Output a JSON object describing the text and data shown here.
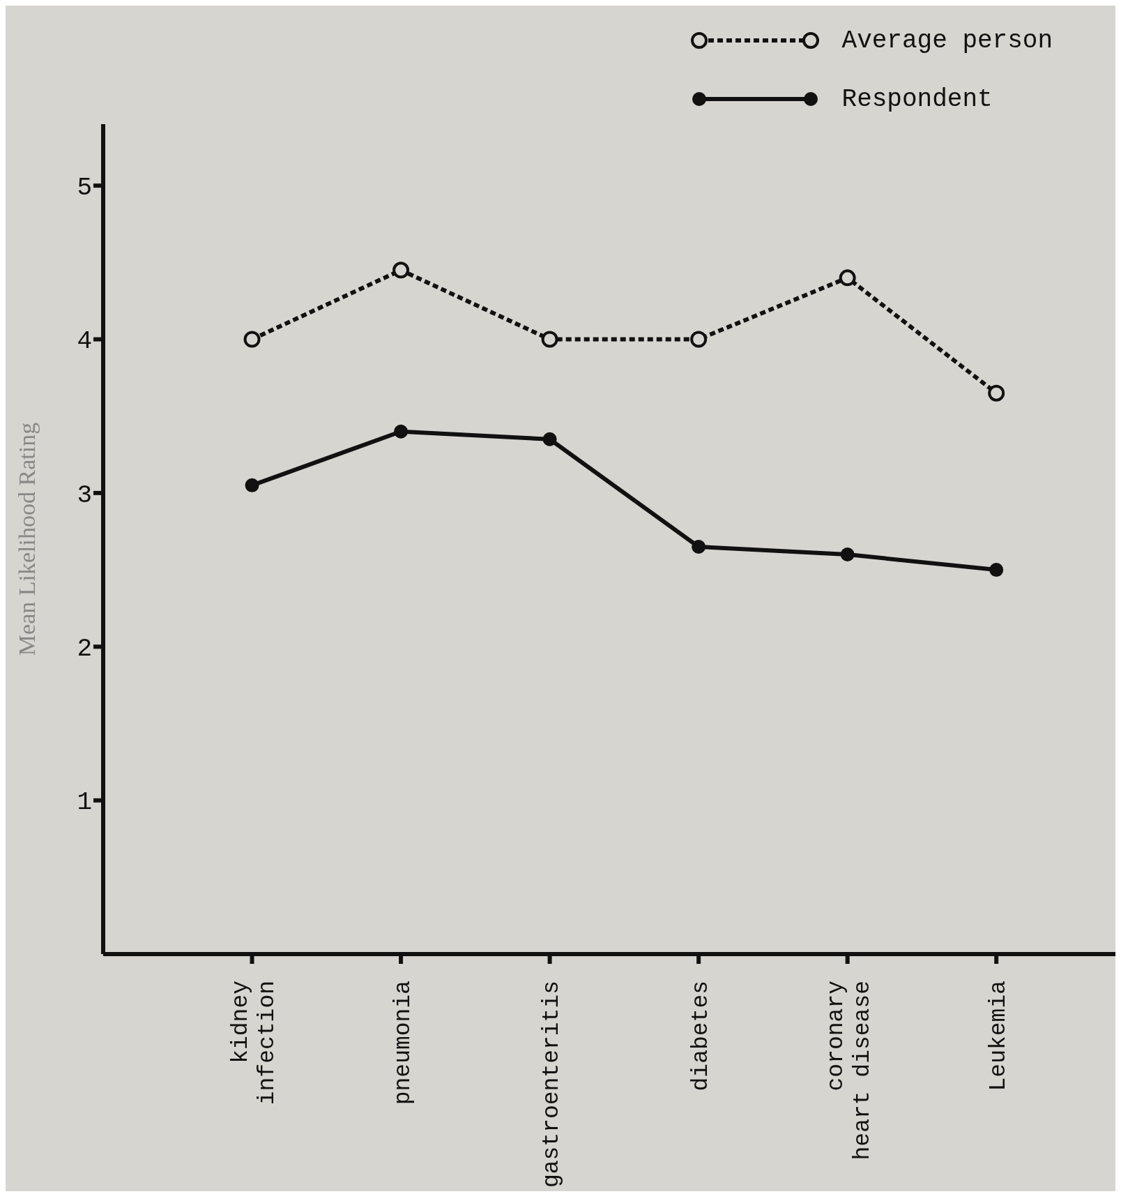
{
  "chart_data": {
    "type": "line",
    "ylabel": "Mean Likelihood Rating",
    "categories": [
      "kidney\ninfection",
      "pneumonia",
      "gastroenteritis",
      "diabetes",
      "coronary\nheart disease",
      "Leukemia"
    ],
    "series": [
      {
        "name": "Average person",
        "color": "#111111",
        "line_style": "dashed",
        "values": [
          4.0,
          4.45,
          4.0,
          4.0,
          4.4,
          3.65
        ]
      },
      {
        "name": "Respondent",
        "color": "#111111",
        "line_style": "solid",
        "values": [
          3.05,
          3.4,
          3.35,
          2.65,
          2.6,
          2.5
        ]
      }
    ],
    "ylim": [
      0,
      5.4
    ],
    "yticks": [
      1,
      2,
      3,
      4,
      5
    ],
    "grid": false,
    "legend": "top right",
    "marker": "circle"
  }
}
